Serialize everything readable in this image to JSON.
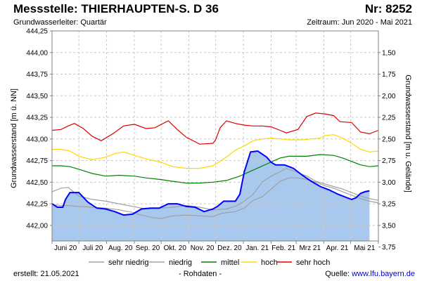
{
  "header": {
    "title": "Messstelle: THIERHAUPTEN-S.  D 36",
    "number": "Nr: 8252",
    "aquifer": "Grundwasserleiter: Quartär",
    "period": "Zeitraum: Jun 2020 - Mai 2021"
  },
  "footer": {
    "created": "erstellt:  21.05.2021",
    "raw": "- Rohdaten -",
    "source_label": "Quelle: ",
    "source_link": "www.lfu.bayern.de"
  },
  "chart_data": {
    "type": "line",
    "title": "Messstelle: THIERHAUPTEN-S.  D 36",
    "xlabel": "",
    "ylabel": "Grundwasserstand [m ü. NN]",
    "ylabel_right": "Grundwasserstand [m u. Gelände]",
    "ylim": [
      441.82,
      444.25
    ],
    "y_ticks": [
      442.0,
      442.25,
      442.5,
      442.75,
      443.0,
      443.25,
      443.5,
      443.75,
      444.0,
      444.25
    ],
    "y_tick_labels": [
      "442,00",
      "442,25",
      "442,50",
      "442,75",
      "443,00",
      "443,25",
      "443,50",
      "443,75",
      "444,00",
      "444,25"
    ],
    "y2_ticks": [
      1.5,
      1.75,
      2.0,
      2.25,
      2.5,
      2.75,
      3.0,
      3.25,
      3.5,
      3.75
    ],
    "y2_tick_labels": [
      "1,50",
      "1,75",
      "2,00",
      "2,25",
      "2,50",
      "2,75",
      "3,00",
      "3,25",
      "3,50",
      "3,75"
    ],
    "ground_level": 445.5,
    "xlim": [
      0,
      365
    ],
    "x_month_boundaries": [
      0,
      30,
      61,
      92,
      122,
      153,
      183,
      214,
      245,
      273,
      304,
      334,
      365
    ],
    "x_labels": [
      "Juni 20",
      "Juli 20",
      "Aug. 20",
      "Sep. 20",
      "Okt. 20",
      "Nov. 20",
      "Dez. 20",
      "Jan. 21",
      "Feb. 21",
      "Mrz 21",
      "Apr. 21",
      "Mai 21"
    ],
    "x_label_positions": [
      15,
      45.5,
      76.5,
      107,
      137.5,
      168,
      198.5,
      229.5,
      259,
      288.5,
      319,
      349.5
    ],
    "series": [
      {
        "name": "sehr niedrig",
        "color": "#a0a0a0",
        "x": [
          0,
          10,
          18,
          30,
          45,
          60,
          75,
          90,
          100,
          112,
          122,
          135,
          150,
          165,
          180,
          190,
          205,
          215,
          225,
          235,
          245,
          255,
          265,
          275,
          285,
          295,
          305,
          315,
          325,
          335,
          345,
          355,
          365
        ],
        "y": [
          442.24,
          442.23,
          442.23,
          442.22,
          442.21,
          442.2,
          442.18,
          442.15,
          442.12,
          442.09,
          442.08,
          442.11,
          442.12,
          442.11,
          442.1,
          442.14,
          442.16,
          442.2,
          442.29,
          442.33,
          442.42,
          442.51,
          442.55,
          442.55,
          442.53,
          442.5,
          442.46,
          442.43,
          442.39,
          442.35,
          442.31,
          442.28,
          442.26
        ]
      },
      {
        "name": "niedrig",
        "color": "#a0a0a0",
        "x": [
          0,
          10,
          18,
          25,
          30,
          45,
          60,
          75,
          90,
          105,
          122,
          135,
          150,
          165,
          180,
          195,
          205,
          215,
          225,
          235,
          245,
          255,
          262,
          275,
          285,
          295,
          305,
          315,
          325,
          335,
          345,
          355,
          365
        ],
        "y": [
          442.39,
          442.43,
          442.44,
          442.38,
          442.34,
          442.3,
          442.28,
          442.25,
          442.22,
          442.19,
          442.2,
          442.21,
          442.23,
          442.21,
          442.18,
          442.19,
          442.22,
          442.28,
          442.36,
          442.5,
          442.57,
          442.62,
          442.66,
          442.61,
          442.57,
          442.51,
          442.48,
          442.45,
          442.42,
          442.38,
          442.34,
          442.31,
          442.29
        ]
      },
      {
        "name": "mittel",
        "color": "#008000",
        "x": [
          0,
          10,
          20,
          30,
          45,
          60,
          75,
          92,
          105,
          122,
          135,
          150,
          165,
          180,
          195,
          210,
          225,
          240,
          255,
          265,
          275,
          285,
          300,
          315,
          325,
          335,
          345,
          355,
          365
        ],
        "y": [
          442.69,
          442.69,
          442.68,
          442.65,
          442.6,
          442.57,
          442.58,
          442.57,
          442.55,
          442.53,
          442.51,
          442.49,
          442.49,
          442.5,
          442.52,
          442.57,
          442.64,
          442.71,
          442.78,
          442.8,
          442.8,
          442.8,
          442.82,
          442.81,
          442.78,
          442.74,
          442.7,
          442.68,
          442.69
        ]
      },
      {
        "name": "hoch",
        "color": "#ffd700",
        "x": [
          0,
          10,
          20,
          30,
          45,
          60,
          70,
          80,
          92,
          105,
          122,
          135,
          150,
          165,
          180,
          195,
          205,
          215,
          225,
          235,
          245,
          255,
          265,
          280,
          290,
          300,
          305,
          315,
          325,
          335,
          345,
          355,
          365
        ],
        "y": [
          442.88,
          442.88,
          442.86,
          442.8,
          442.76,
          442.79,
          442.83,
          442.85,
          442.81,
          442.77,
          442.73,
          442.68,
          442.66,
          442.66,
          442.69,
          442.79,
          442.87,
          442.92,
          442.98,
          443.0,
          443.01,
          443.0,
          442.99,
          442.99,
          443.0,
          443.01,
          443.04,
          443.05,
          443.01,
          442.95,
          442.88,
          442.85,
          442.86
        ]
      },
      {
        "name": "sehr hoch",
        "color": "#dd0000",
        "x": [
          0,
          10,
          18,
          25,
          35,
          45,
          55,
          68,
          80,
          92,
          105,
          115,
          130,
          140,
          150,
          165,
          180,
          183,
          188,
          195,
          205,
          215,
          225,
          235,
          245,
          255,
          262,
          275,
          285,
          295,
          305,
          315,
          322,
          335,
          345,
          355,
          365
        ],
        "y": [
          443.1,
          443.11,
          443.15,
          443.18,
          443.12,
          443.03,
          442.98,
          443.06,
          443.15,
          443.17,
          443.12,
          443.13,
          443.21,
          443.11,
          443.02,
          442.94,
          442.95,
          442.99,
          443.13,
          443.21,
          443.18,
          443.16,
          443.15,
          443.15,
          443.14,
          443.1,
          443.07,
          443.11,
          443.26,
          443.3,
          443.29,
          443.27,
          443.2,
          443.19,
          443.08,
          443.06,
          443.1
        ]
      },
      {
        "name": "Messwerte",
        "color": "#0000ff",
        "fill": "#a8c8ee",
        "legend": false,
        "x": [
          0,
          6,
          12,
          15,
          20,
          30,
          40,
          50,
          60,
          70,
          80,
          90,
          100,
          110,
          120,
          130,
          140,
          150,
          160,
          170,
          180,
          185,
          192,
          200,
          205,
          210,
          215,
          222,
          230,
          240,
          245,
          250,
          255,
          260,
          270,
          280,
          290,
          300,
          310,
          320,
          330,
          335,
          340,
          345,
          350,
          355
        ],
        "y": [
          442.25,
          442.21,
          442.21,
          442.3,
          442.38,
          442.38,
          442.27,
          442.2,
          442.19,
          442.16,
          442.12,
          442.13,
          442.19,
          442.2,
          442.2,
          442.25,
          442.25,
          442.22,
          442.21,
          442.16,
          442.19,
          442.22,
          442.28,
          442.28,
          442.28,
          442.36,
          442.62,
          442.85,
          442.86,
          442.79,
          442.73,
          442.7,
          442.7,
          442.7,
          442.66,
          442.58,
          442.51,
          442.45,
          442.41,
          442.36,
          442.32,
          442.3,
          442.32,
          442.37,
          442.39,
          442.4
        ]
      }
    ],
    "legend": {
      "placement": "bottom",
      "entries": [
        "sehr niedrig",
        "niedrig",
        "mittel",
        "hoch",
        "sehr hoch"
      ]
    }
  }
}
